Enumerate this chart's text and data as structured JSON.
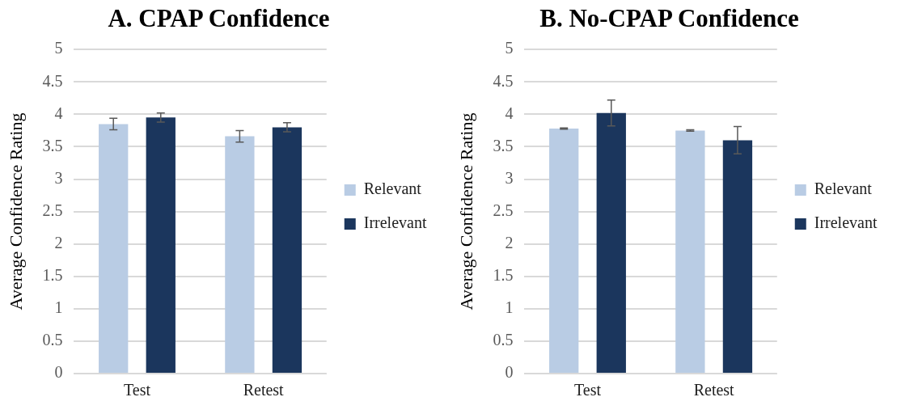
{
  "chart_data": [
    {
      "type": "bar",
      "title": "A. CPAP Confidence",
      "ylabel": "Average Confidence Rating",
      "categories": [
        "Test",
        "Retest"
      ],
      "series": [
        {
          "name": "Relevant",
          "color": "#b9cce4",
          "values": [
            3.85,
            3.66
          ],
          "errors": [
            0.09,
            0.09
          ]
        },
        {
          "name": "Irrelevant",
          "color": "#1b365d",
          "values": [
            3.95,
            3.8
          ],
          "errors": [
            0.07,
            0.07
          ]
        }
      ],
      "ylim": [
        0,
        5
      ],
      "yticks": [
        0,
        0.5,
        1,
        1.5,
        2,
        2.5,
        3,
        3.5,
        4,
        4.5,
        5
      ],
      "grid": "y",
      "legend": "right"
    },
    {
      "type": "bar",
      "title": "B. No-CPAP Confidence",
      "ylabel": "Average Confidence Rating",
      "categories": [
        "Test",
        "Retest"
      ],
      "series": [
        {
          "name": "Relevant",
          "color": "#b9cce4",
          "values": [
            3.78,
            3.75
          ],
          "errors": [
            0.01,
            0.01
          ]
        },
        {
          "name": "Irrelevant",
          "color": "#1b365d",
          "values": [
            4.02,
            3.6
          ],
          "errors": [
            0.2,
            0.21
          ]
        }
      ],
      "ylim": [
        0,
        5
      ],
      "yticks": [
        0,
        0.5,
        1,
        1.5,
        2,
        2.5,
        3,
        3.5,
        4,
        4.5,
        5
      ],
      "grid": "y",
      "legend": "right"
    }
  ]
}
